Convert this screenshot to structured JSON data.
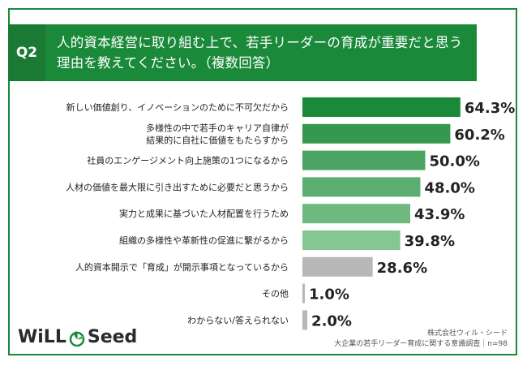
{
  "question": {
    "label": "Q2",
    "line1": "人的資本経営に取り組む上で、若手リーダーの育成が重要だと思う",
    "line2": "理由を教えてください。（複数回答）"
  },
  "chart_data": {
    "type": "bar",
    "orientation": "horizontal",
    "categories": [
      [
        "新しい価値創り、イノベーションのために不可欠だから"
      ],
      [
        "多様性の中で若手のキャリア自律が",
        "結果的に自社に価値をもたらすから"
      ],
      [
        "社員のエンゲージメント向上施策の1つになるから"
      ],
      [
        "人材の価値を最大限に引き出すために必要だと思うから"
      ],
      [
        "実力と成果に基づいた人材配置を行うため"
      ],
      [
        "組織の多様性や革新性の促進に繋がるから"
      ],
      [
        "人的資本開示で「育成」が開示事項となっているから"
      ],
      [
        "その他"
      ],
      [
        "わからない/答えられない"
      ]
    ],
    "values": [
      64.3,
      60.2,
      50.0,
      48.0,
      43.9,
      39.8,
      28.6,
      1.0,
      2.0
    ],
    "value_labels": [
      "64.3%",
      "60.2%",
      "50.0%",
      "48.0%",
      "43.9%",
      "39.8%",
      "28.6%",
      "1.0%",
      "2.0%"
    ],
    "colors": [
      "#1a8a3a",
      "#34994f",
      "#4aa462",
      "#5aaf70",
      "#6db97f",
      "#85c693",
      "#b8b8b8",
      "#b8b8b8",
      "#b8b8b8"
    ],
    "xlim": [
      0,
      100
    ]
  },
  "logo": {
    "part1": "WiLL",
    "part2": "Seed"
  },
  "credit": {
    "line1": "株式会社ウィル・シード",
    "line2": "大企業の若手リーダー育成に関する意識調査｜n=98"
  }
}
